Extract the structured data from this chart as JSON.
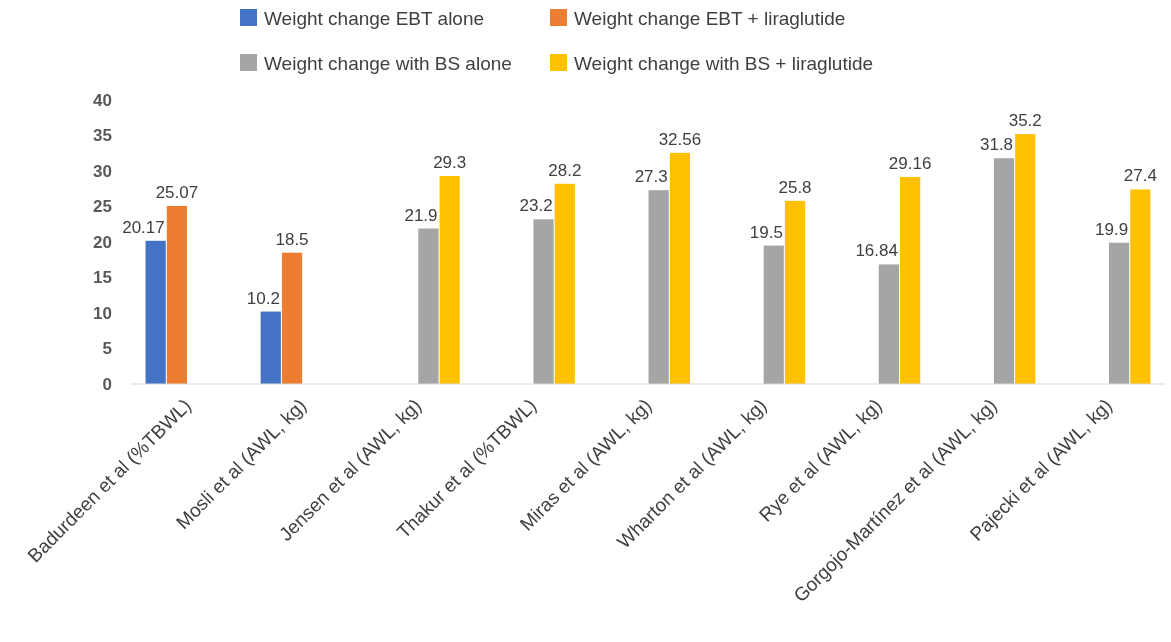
{
  "chart_data": {
    "type": "bar",
    "categories": [
      "Badurdeen et al (%TBWL)",
      "Mosli et al (AWL, kg)",
      "Jensen et al (AWL, kg)",
      "Thakur et al (%TBWL)",
      "Miras et al (AWL, kg)",
      "Wharton et al (AWL, kg)",
      "Rye et al (AWL, kg)",
      "Gorgojo-Martínez et al (AWL, kg)",
      "Pajecki et al (AWL, kg)"
    ],
    "series": [
      {
        "name": "Weight change EBT alone",
        "color": "#4472c4",
        "values": [
          20.17,
          10.2,
          null,
          null,
          null,
          null,
          null,
          null,
          null
        ]
      },
      {
        "name": "Weight change EBT + liraglutide",
        "color": "#ed7d31",
        "values": [
          25.07,
          18.5,
          null,
          null,
          null,
          null,
          null,
          null,
          null
        ]
      },
      {
        "name": "Weight change with BS alone",
        "color": "#a5a5a5",
        "values": [
          null,
          null,
          21.9,
          23.2,
          27.3,
          19.5,
          16.84,
          31.8,
          19.9
        ]
      },
      {
        "name": "Weight change with BS + liraglutide",
        "color": "#ffc000",
        "values": [
          null,
          null,
          29.3,
          28.2,
          32.56,
          25.8,
          29.16,
          35.2,
          27.4
        ]
      }
    ],
    "ylim": [
      0,
      40
    ],
    "yticks": [
      0,
      5,
      10,
      15,
      20,
      25,
      30,
      35,
      40
    ],
    "grid": false,
    "legend": "top",
    "data_labels": true
  }
}
